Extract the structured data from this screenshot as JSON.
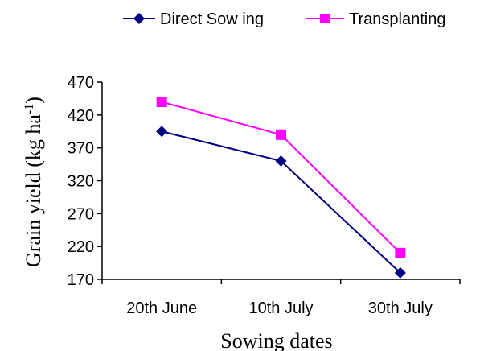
{
  "chart_data": {
    "type": "line",
    "categories": [
      "20th June",
      "10th July",
      "30th July"
    ],
    "series": [
      {
        "name": "Direct Sow ing",
        "values": [
          395,
          350,
          180
        ],
        "color": "#000080",
        "marker": "diamond"
      },
      {
        "name": "Transplanting",
        "values": [
          440,
          390,
          210
        ],
        "color": "#ff00ff",
        "marker": "square"
      }
    ],
    "xlabel": "Sowing dates",
    "ylabel": "Grain yield (kg ha",
    "ylabel_superscript": "-1",
    "ylabel_suffix": ")",
    "yticks": [
      "170",
      "220",
      "270",
      "320",
      "370",
      "420",
      "470"
    ],
    "ylim": [
      170,
      470
    ],
    "legend_position": "top",
    "grid": false
  }
}
